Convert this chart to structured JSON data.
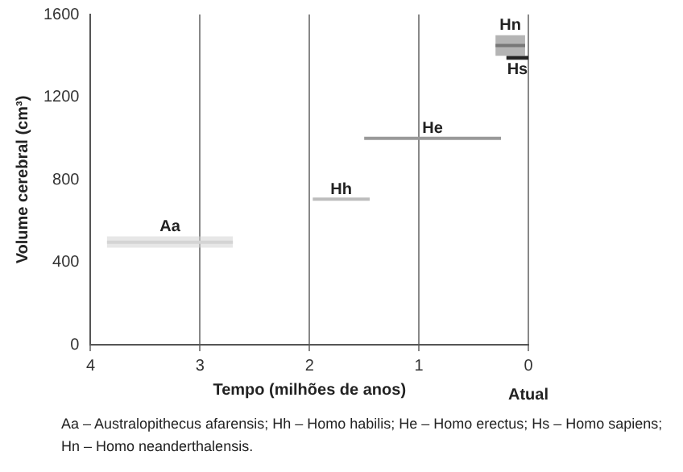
{
  "chart_data": {
    "type": "line",
    "xlabel": "Tempo (milhões de anos)",
    "ylabel": "Volume cerebral (cm³)",
    "xlim": [
      4,
      0
    ],
    "xticks": [
      4,
      3,
      2,
      1,
      0
    ],
    "ylim": [
      0,
      1600
    ],
    "yticks": [
      0,
      400,
      800,
      1200,
      1600
    ],
    "grid": "x",
    "marker": "none",
    "legend": false,
    "series": [
      {
        "name": "Aa",
        "color": "#d4d4d4",
        "x": [
          3.85,
          2.7
        ],
        "values": [
          497,
          497
        ],
        "lower": [
          470,
          470
        ],
        "upper": [
          525,
          525
        ]
      },
      {
        "name": "Hh",
        "color": "#bdbdbd",
        "x": [
          1.97,
          1.45
        ],
        "values": [
          705,
          705
        ]
      },
      {
        "name": "He",
        "color": "#999999",
        "x": [
          1.5,
          0.25
        ],
        "values": [
          1000,
          1000
        ]
      },
      {
        "name": "Hn",
        "color": "#777777",
        "x": [
          0.3,
          0.03
        ],
        "values": [
          1450,
          1450
        ],
        "lower": [
          1400,
          1400
        ],
        "upper": [
          1500,
          1500
        ]
      },
      {
        "name": "Hs",
        "color": "#222222",
        "x": [
          0.2,
          0.0
        ],
        "values": [
          1390,
          1390
        ],
        "lower": [
          1380,
          1380
        ],
        "upper": [
          1400,
          1400
        ]
      }
    ],
    "annotations": [
      "Atual",
      "Aa – Australopithecus afarensis; Hh – Homo habilis; He – Homo erectus; Hs – Homo sapiens; Hn – Homo neanderthalensis."
    ]
  }
}
